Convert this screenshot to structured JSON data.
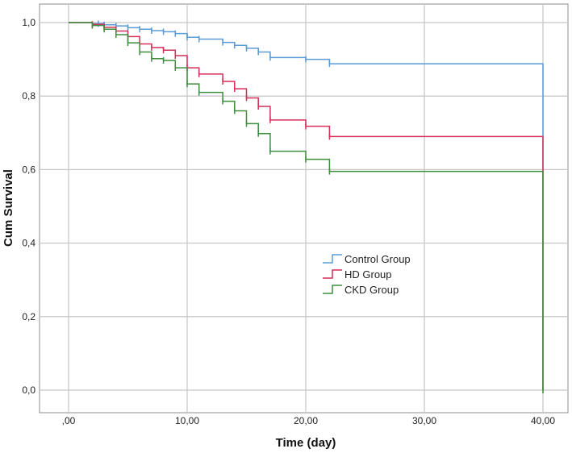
{
  "chart_data": {
    "type": "line",
    "xlabel": "Time (day)",
    "ylabel": "Cum Survival",
    "xlim": [
      0,
      40
    ],
    "ylim": [
      0,
      1
    ],
    "x_ticks": [
      0,
      10,
      20,
      30,
      40
    ],
    "x_tick_labels": [
      ",00",
      "10,00",
      "20,00",
      "30,00",
      "40,00"
    ],
    "y_ticks": [
      0,
      0.2,
      0.4,
      0.6,
      0.8,
      1.0
    ],
    "y_tick_labels": [
      "0,0",
      "0,2",
      "0,4",
      "0,6",
      "0,8",
      "1,0"
    ],
    "grid": true,
    "legend_position": "center-right",
    "step": true,
    "series": [
      {
        "name": "Control Group",
        "color": "#5b9bd5",
        "x": [
          0,
          2,
          3,
          4,
          5,
          6,
          7,
          8,
          9,
          10,
          11,
          13,
          14,
          15,
          16,
          17,
          20,
          22,
          40,
          40
        ],
        "y": [
          1.0,
          0.997,
          0.994,
          0.991,
          0.986,
          0.982,
          0.978,
          0.975,
          0.97,
          0.96,
          0.955,
          0.946,
          0.938,
          0.93,
          0.92,
          0.905,
          0.9,
          0.888,
          0.888,
          0.0
        ],
        "censored_x": [
          2.5,
          3,
          4,
          5,
          6,
          7,
          8,
          9,
          10,
          11,
          13,
          14,
          15,
          16,
          17,
          20,
          22
        ]
      },
      {
        "name": "HD Group",
        "color": "#d62f5a",
        "x": [
          0,
          2,
          3,
          4,
          5,
          6,
          7,
          8,
          9,
          10,
          11,
          13,
          14,
          15,
          16,
          17,
          20,
          22,
          40,
          40
        ],
        "y": [
          1.0,
          0.995,
          0.987,
          0.977,
          0.962,
          0.942,
          0.932,
          0.925,
          0.91,
          0.877,
          0.86,
          0.84,
          0.82,
          0.795,
          0.772,
          0.735,
          0.718,
          0.69,
          0.69,
          0.0
        ],
        "censored_x": [
          2,
          3,
          4,
          5,
          6,
          7,
          8,
          9,
          10,
          11,
          13,
          14,
          15,
          16,
          17,
          20,
          22
        ]
      },
      {
        "name": "CKD Group",
        "color": "#3e8e3e",
        "x": [
          0,
          2,
          3,
          4,
          5,
          6,
          7,
          8,
          9,
          10,
          11,
          13,
          14,
          15,
          16,
          17,
          20,
          22,
          40,
          40
        ],
        "y": [
          1.0,
          0.992,
          0.982,
          0.967,
          0.945,
          0.92,
          0.902,
          0.897,
          0.877,
          0.833,
          0.81,
          0.786,
          0.76,
          0.725,
          0.698,
          0.65,
          0.628,
          0.595,
          0.595,
          0.0
        ],
        "censored_x": [
          2,
          3,
          4,
          5,
          6,
          7,
          8,
          9,
          10,
          11,
          13,
          14,
          15,
          16,
          17,
          20,
          22,
          40
        ]
      }
    ]
  }
}
